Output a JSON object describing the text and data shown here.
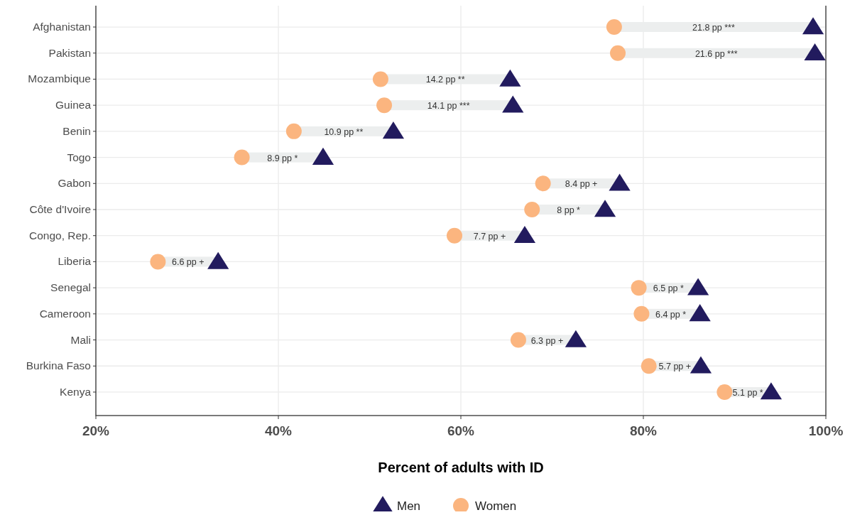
{
  "chart_data": {
    "type": "scatter",
    "orientation": "horizontal",
    "xlabel": "Percent of adults with ID",
    "categories": [
      "Afghanistan",
      "Pakistan",
      "Mozambique",
      "Guinea",
      "Benin",
      "Togo",
      "Gabon",
      "Côte d'Ivoire",
      "Congo, Rep.",
      "Liberia",
      "Senegal",
      "Cameroon",
      "Mali",
      "Burkina Faso",
      "Kenya"
    ],
    "xlim": [
      20,
      100
    ],
    "xticks": [
      {
        "value": 20,
        "label": "20%"
      },
      {
        "value": 40,
        "label": "40%"
      },
      {
        "value": 60,
        "label": "60%"
      },
      {
        "value": 80,
        "label": "80%"
      },
      {
        "value": 100,
        "label": "100%"
      }
    ],
    "grid": true,
    "legend": "bottom",
    "series": [
      {
        "type": "bar",
        "color": "#eceeee",
        "base": [
          76.8,
          77.2,
          51.2,
          51.6,
          41.7,
          36.0,
          69.0,
          67.8,
          59.3,
          26.8,
          79.5,
          79.8,
          66.3,
          80.6,
          88.9
        ],
        "values": [
          21.8,
          21.6,
          14.2,
          14.1,
          10.9,
          8.9,
          8.4,
          8,
          7.7,
          6.6,
          6.5,
          6.4,
          6.3,
          5.7,
          5.1
        ],
        "value_labels": [
          "21.8 pp ***",
          "21.6 pp ***",
          "14.2 pp **",
          "14.1 pp ***",
          "10.9 pp **",
          "8.9 pp *",
          "8.4 pp +",
          "8 pp *",
          "7.7 pp +",
          "6.6 pp +",
          "6.5 pp *",
          "6.4 pp *",
          "6.3 pp +",
          "5.7 pp +",
          "5.1 pp *"
        ]
      },
      {
        "name": "Women",
        "color": "#fbb57f",
        "marker": "circle",
        "values": [
          76.8,
          77.2,
          51.2,
          51.6,
          41.7,
          36.0,
          69.0,
          67.8,
          59.3,
          26.8,
          79.5,
          79.8,
          66.3,
          80.6,
          88.9
        ]
      },
      {
        "name": "Men",
        "color": "#221b5e",
        "marker": "triangle",
        "values": [
          98.6,
          98.8,
          65.4,
          65.7,
          52.6,
          44.9,
          77.4,
          75.8,
          67.0,
          33.4,
          86.0,
          86.2,
          72.6,
          86.3,
          94.0
        ]
      }
    ]
  }
}
